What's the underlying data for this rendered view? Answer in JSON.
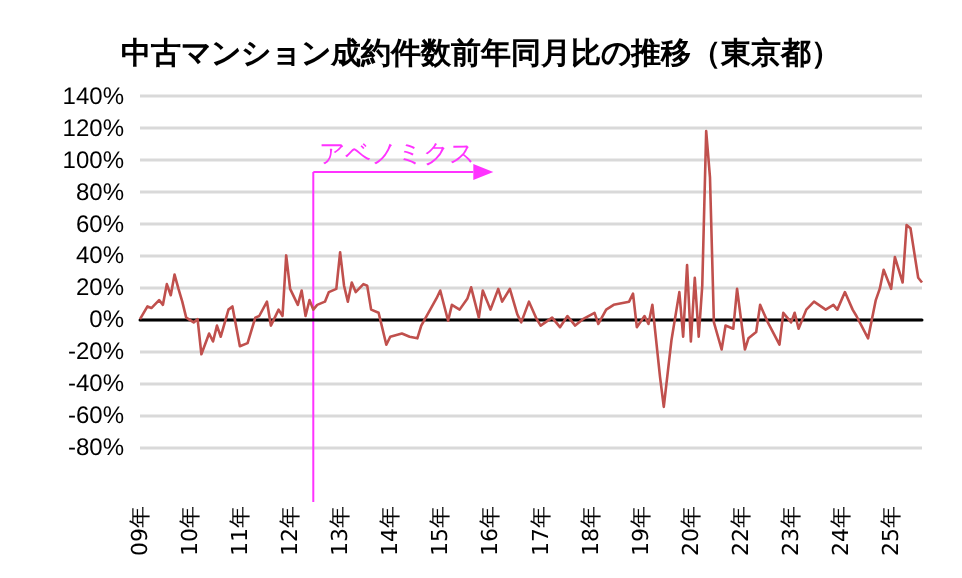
{
  "chart_data": {
    "type": "line",
    "title": "中古マンション成約件数前年同月比の推移（東京都）",
    "x": [
      "2009-01",
      "2009-03",
      "2009-04",
      "2009-06",
      "2009-07",
      "2009-08",
      "2009-09",
      "2009-10",
      "2009-11",
      "2009-12",
      "2010-01",
      "2010-03",
      "2010-04",
      "2010-05",
      "2010-07",
      "2010-08",
      "2010-09",
      "2010-10",
      "2010-12",
      "2011-01",
      "2011-03",
      "2011-05",
      "2011-07",
      "2011-08",
      "2011-10",
      "2011-11",
      "2012-01",
      "2012-02",
      "2012-03",
      "2012-04",
      "2012-06",
      "2012-07",
      "2012-08",
      "2012-09",
      "2012-10",
      "2012-11",
      "2013-01",
      "2013-02",
      "2013-04",
      "2013-05",
      "2013-06",
      "2013-07",
      "2013-08",
      "2013-09",
      "2013-11",
      "2013-12",
      "2014-01",
      "2014-03",
      "2014-05",
      "2014-06",
      "2014-09",
      "2014-11",
      "2015-01",
      "2015-02",
      "2015-06",
      "2015-07",
      "2015-09",
      "2015-10",
      "2015-12",
      "2016-02",
      "2016-03",
      "2016-05",
      "2016-06",
      "2016-08",
      "2016-10",
      "2016-11",
      "2017-01",
      "2017-03",
      "2017-04",
      "2017-06",
      "2017-08",
      "2017-09",
      "2017-12",
      "2018-02",
      "2018-04",
      "2018-06",
      "2018-08",
      "2018-11",
      "2018-12",
      "2019-02",
      "2019-04",
      "2019-08",
      "2019-09",
      "2019-10",
      "2019-12",
      "2020-01",
      "2020-02",
      "2020-04",
      "2020-05",
      "2020-07",
      "2020-09",
      "2020-10",
      "2020-11",
      "2020-12",
      "2021-01",
      "2021-02",
      "2021-03",
      "2021-04",
      "2021-05",
      "2021-06",
      "2021-08",
      "2021-09",
      "2021-11",
      "2021-12",
      "2022-02",
      "2022-03",
      "2022-05",
      "2022-06",
      "2022-08",
      "2022-11",
      "2022-12",
      "2023-02",
      "2023-03",
      "2023-04",
      "2023-06",
      "2023-08",
      "2023-11",
      "2024-01",
      "2024-02",
      "2024-04",
      "2024-06",
      "2024-07",
      "2024-10",
      "2024-12",
      "2025-01",
      "2025-02",
      "2025-04",
      "2025-05",
      "2025-07",
      "2025-08",
      "2025-09",
      "2025-11",
      "2025-12"
    ],
    "series": [
      {
        "color": "#c0504d",
        "values": [
          0,
          8,
          7,
          12,
          9,
          22,
          15,
          28,
          19,
          11,
          1,
          -2,
          0,
          -22,
          -9,
          -14,
          -4,
          -11,
          6,
          8,
          -17,
          -15,
          1,
          2,
          11,
          -4,
          6,
          2,
          40,
          19,
          9,
          18,
          2,
          12,
          6,
          9,
          11,
          17,
          19,
          42,
          21,
          11,
          23,
          17,
          22,
          21,
          6,
          4,
          -16,
          -11,
          -9,
          -11,
          -12,
          -4,
          13,
          18,
          -1,
          9,
          6,
          13,
          20,
          1,
          18,
          6,
          19,
          11,
          19,
          3,
          -2,
          11,
          0,
          -4,
          1,
          -5,
          2,
          -4,
          0,
          4,
          -3,
          6,
          9,
          11,
          16,
          -5,
          2,
          -3,
          9,
          -36,
          -55,
          -13,
          17,
          -11,
          34,
          -14,
          26,
          -11,
          21,
          118,
          89,
          -2,
          -19,
          -4,
          -6,
          19,
          -19,
          -12,
          -8,
          9,
          -2,
          -16,
          4,
          -2,
          4,
          -6,
          6,
          11,
          6,
          9,
          6,
          17,
          6,
          2,
          -12,
          12,
          19,
          31,
          19,
          39,
          23,
          59,
          57,
          26,
          23
        ]
      }
    ],
    "xlim": [
      "2009-01",
      "2025-12"
    ],
    "xticks": [
      {
        "value": "2009-01",
        "label": "09年"
      },
      {
        "value": "2010-02",
        "label": "10年"
      },
      {
        "value": "2011-03",
        "label": "11年"
      },
      {
        "value": "2012-04",
        "label": "12年"
      },
      {
        "value": "2013-05",
        "label": "13年"
      },
      {
        "value": "2014-06",
        "label": "14年"
      },
      {
        "value": "2015-07",
        "label": "15年"
      },
      {
        "value": "2016-08",
        "label": "16年"
      },
      {
        "value": "2017-09",
        "label": "17年"
      },
      {
        "value": "2018-10",
        "label": "18年"
      },
      {
        "value": "2019-11",
        "label": "19年"
      },
      {
        "value": "2020-12",
        "label": "20年"
      },
      {
        "value": "2022-01",
        "label": "22年"
      },
      {
        "value": "2023-02",
        "label": "23年"
      },
      {
        "value": "2024-03",
        "label": "24年"
      },
      {
        "value": "2025-04",
        "label": "25年"
      }
    ],
    "ylim": [
      -80,
      140
    ],
    "yticks": [
      {
        "value": -80,
        "label": "-80%"
      },
      {
        "value": -60,
        "label": "-60%"
      },
      {
        "value": -40,
        "label": "-40%"
      },
      {
        "value": -20,
        "label": "-20%"
      },
      {
        "value": 0,
        "label": "0%"
      },
      {
        "value": 20,
        "label": "20%"
      },
      {
        "value": 40,
        "label": "40%"
      },
      {
        "value": 60,
        "label": "60%"
      },
      {
        "value": 80,
        "label": "80%"
      },
      {
        "value": 100,
        "label": "100%"
      },
      {
        "value": 120,
        "label": "120%"
      },
      {
        "value": 140,
        "label": "140%"
      }
    ],
    "grid": "y",
    "ref_lines": [
      {
        "axis": "x",
        "value": "2012-10",
        "label": "アベノミクス",
        "color": "#ff33ff"
      }
    ]
  }
}
